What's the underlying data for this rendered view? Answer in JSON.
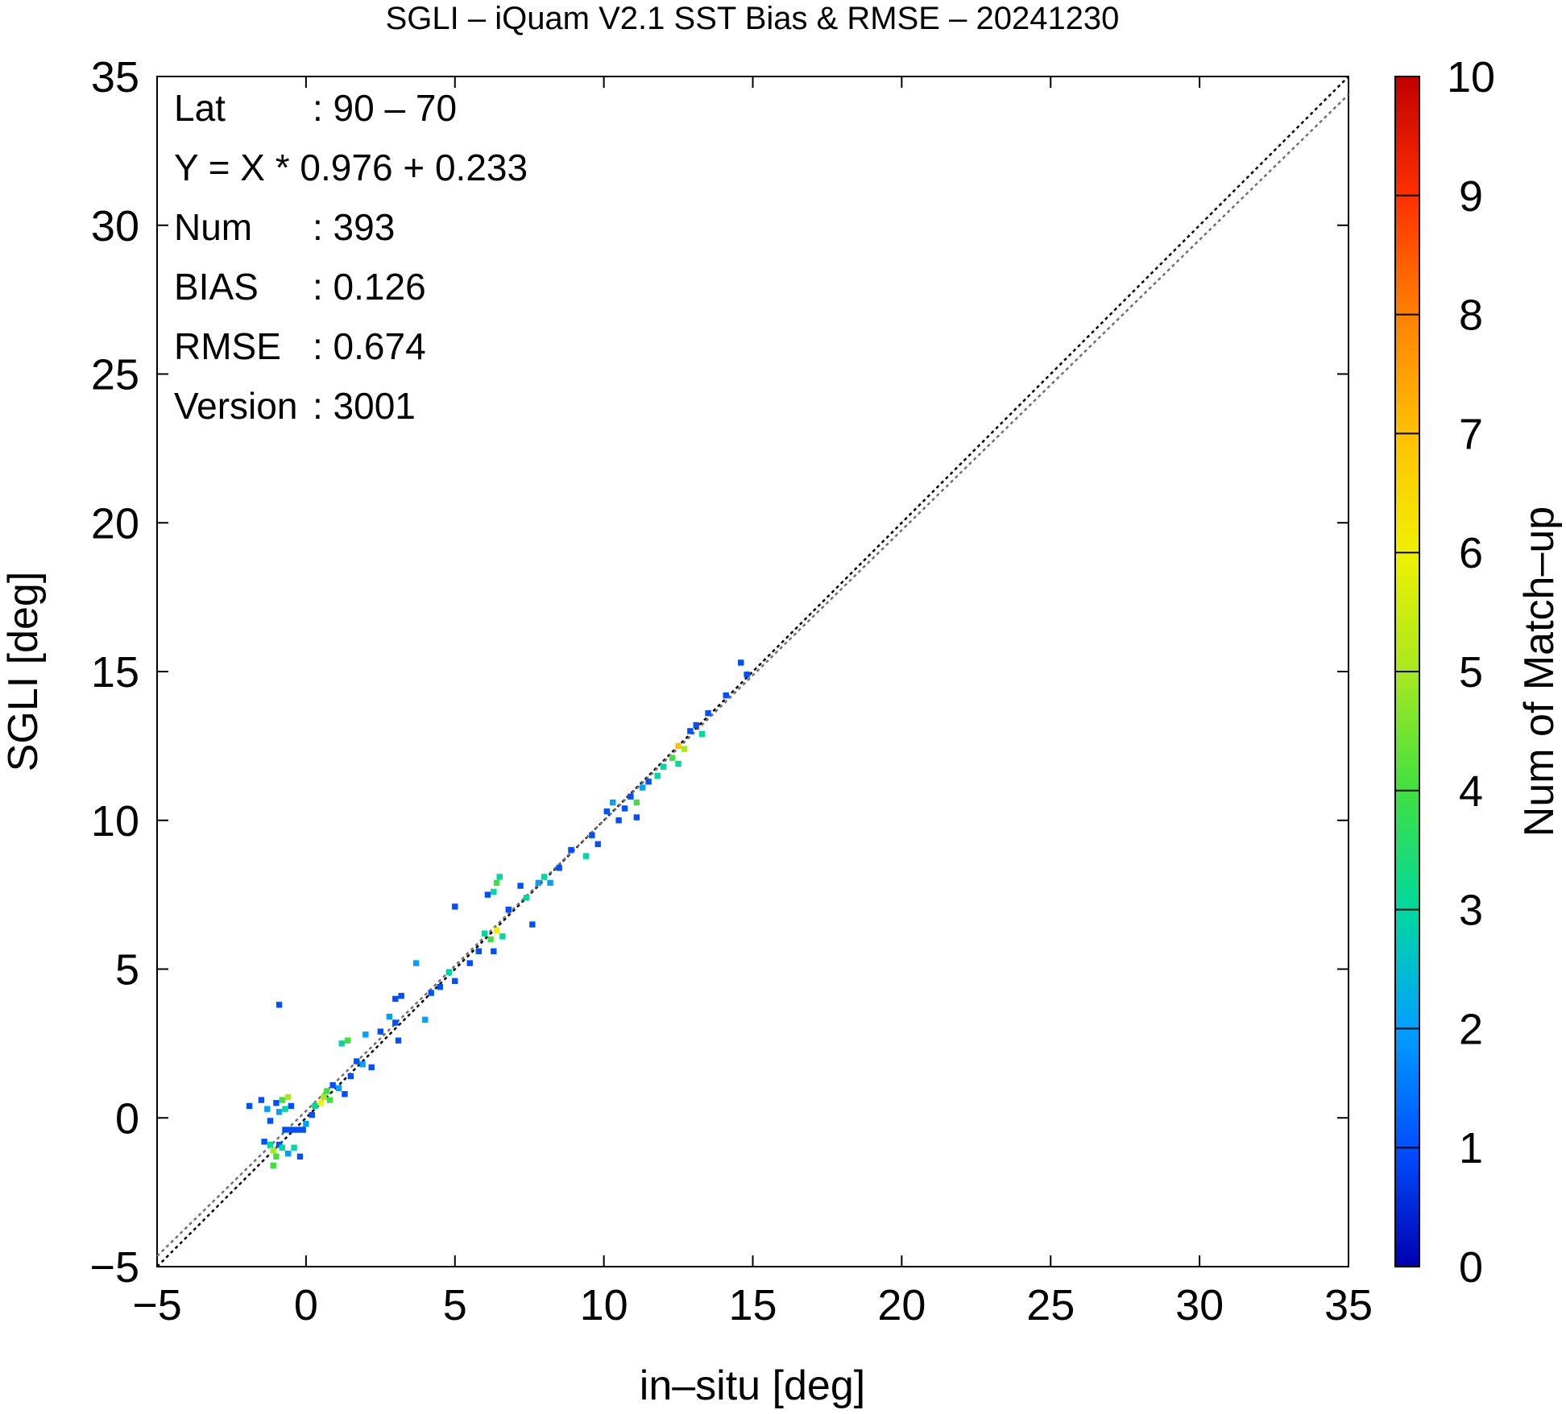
{
  "chart_data": {
    "type": "heatmap",
    "title": "SGLI – iQuam V2.1 SST Bias & RMSE  – 20241230",
    "xlabel": "in–situ [deg]",
    "ylabel": "SGLI [deg]",
    "xlim": [
      -5,
      35
    ],
    "ylim": [
      -5,
      35
    ],
    "x_ticks": [
      "−5",
      "0",
      "5",
      "10",
      "15",
      "20",
      "25",
      "30",
      "35"
    ],
    "y_ticks": [
      "−5",
      "0",
      "5",
      "10",
      "15",
      "20",
      "25",
      "30",
      "35"
    ],
    "grid": false,
    "colorbar": {
      "label": "Num of Match–up",
      "range": [
        0,
        10
      ],
      "ticks": [
        "0",
        "1",
        "2",
        "3",
        "4",
        "5",
        "6",
        "7",
        "8",
        "9",
        "10"
      ],
      "colors": [
        "#0000b0",
        "#0050ff",
        "#00a0ff",
        "#00d8a0",
        "#40e040",
        "#a8e820",
        "#f0f000",
        "#ffc000",
        "#ff8000",
        "#ff3000",
        "#c00000"
      ]
    },
    "stats": [
      {
        "key": "Lat",
        "value": ": 90 – 70"
      },
      {
        "key": "Y = X * 0.976 + 0.233",
        "value": ""
      },
      {
        "key": "Num",
        "value": ": 393"
      },
      {
        "key": "BIAS",
        "value": ": 0.126"
      },
      {
        "key": "RMSE",
        "value": ": 0.674"
      },
      {
        "key": "Version",
        "value": ": 3001"
      }
    ],
    "lines": [
      {
        "type": "identity",
        "slope": 1,
        "intercept": 0,
        "color": "#000000"
      },
      {
        "type": "regression",
        "slope": 0.976,
        "intercept": 0.233,
        "color": "#707070"
      }
    ],
    "points": [
      [
        -1.9,
        0.4,
        1
      ],
      [
        -1.5,
        0.6,
        1
      ],
      [
        -1.3,
        0.3,
        2
      ],
      [
        -1.2,
        -0.1,
        1
      ],
      [
        -1.0,
        0.5,
        1
      ],
      [
        -0.9,
        0.2,
        2
      ],
      [
        -0.8,
        0.6,
        4
      ],
      [
        -0.7,
        0.3,
        3
      ],
      [
        -0.6,
        0.7,
        5
      ],
      [
        -0.5,
        0.4,
        1
      ],
      [
        -1.4,
        -0.8,
        1
      ],
      [
        -1.2,
        -0.9,
        3
      ],
      [
        -1.1,
        -1.1,
        5
      ],
      [
        -1.0,
        -1.3,
        4
      ],
      [
        -1.1,
        -1.6,
        4
      ],
      [
        -0.9,
        -0.9,
        1
      ],
      [
        -0.8,
        -1.0,
        3
      ],
      [
        -0.6,
        -1.2,
        2
      ],
      [
        -0.4,
        -1.0,
        3
      ],
      [
        -0.2,
        -1.3,
        1
      ],
      [
        -0.7,
        -0.4,
        1
      ],
      [
        -0.5,
        -0.4,
        1
      ],
      [
        -0.3,
        -0.4,
        1
      ],
      [
        -0.1,
        -0.4,
        1
      ],
      [
        0.0,
        -0.2,
        2
      ],
      [
        0.2,
        0.1,
        1
      ],
      [
        0.3,
        0.4,
        3
      ],
      [
        0.5,
        0.5,
        6
      ],
      [
        0.6,
        0.7,
        5
      ],
      [
        0.7,
        0.9,
        4
      ],
      [
        0.8,
        0.6,
        4
      ],
      [
        0.9,
        1.1,
        1
      ],
      [
        1.1,
        1.0,
        2
      ],
      [
        1.3,
        0.8,
        1
      ],
      [
        1.5,
        1.4,
        1
      ],
      [
        1.7,
        1.9,
        1
      ],
      [
        1.2,
        2.5,
        3
      ],
      [
        1.4,
        2.6,
        4
      ],
      [
        1.9,
        1.8,
        2
      ],
      [
        2.2,
        1.7,
        1
      ],
      [
        2.0,
        2.8,
        2
      ],
      [
        2.5,
        2.9,
        1
      ],
      [
        2.8,
        3.4,
        2
      ],
      [
        3.0,
        4.0,
        1
      ],
      [
        3.2,
        4.1,
        1
      ],
      [
        3.0,
        3.2,
        1
      ],
      [
        3.1,
        2.6,
        1
      ],
      [
        3.7,
        5.2,
        2
      ],
      [
        4.0,
        3.3,
        2
      ],
      [
        4.2,
        4.2,
        1
      ],
      [
        4.5,
        4.4,
        1
      ],
      [
        4.8,
        4.9,
        3
      ],
      [
        5.0,
        4.6,
        1
      ],
      [
        5.5,
        5.2,
        1
      ],
      [
        5.0,
        7.1,
        1
      ],
      [
        5.8,
        5.6,
        1
      ],
      [
        6.0,
        6.2,
        3
      ],
      [
        6.1,
        7.5,
        1
      ],
      [
        6.3,
        7.6,
        3
      ],
      [
        6.4,
        7.9,
        4
      ],
      [
        6.5,
        8.1,
        3
      ],
      [
        6.2,
        6.0,
        4
      ],
      [
        6.4,
        6.3,
        6
      ],
      [
        6.6,
        6.1,
        3
      ],
      [
        6.3,
        5.6,
        1
      ],
      [
        6.8,
        7.0,
        1
      ],
      [
        7.2,
        7.8,
        1
      ],
      [
        7.4,
        7.4,
        3
      ],
      [
        7.6,
        6.5,
        1
      ],
      [
        7.8,
        7.9,
        2
      ],
      [
        8.0,
        8.1,
        3
      ],
      [
        8.2,
        7.9,
        2
      ],
      [
        8.5,
        8.4,
        1
      ],
      [
        8.9,
        9.0,
        1
      ],
      [
        9.4,
        8.8,
        3
      ],
      [
        9.6,
        9.5,
        1
      ],
      [
        9.8,
        9.2,
        1
      ],
      [
        10.1,
        10.3,
        1
      ],
      [
        10.3,
        10.6,
        2
      ],
      [
        10.5,
        10.0,
        1
      ],
      [
        10.7,
        10.4,
        1
      ],
      [
        10.9,
        10.8,
        1
      ],
      [
        11.1,
        10.6,
        4
      ],
      [
        11.3,
        11.1,
        2
      ],
      [
        11.1,
        10.1,
        1
      ],
      [
        11.5,
        11.3,
        1
      ],
      [
        11.8,
        11.5,
        3
      ],
      [
        12.0,
        11.8,
        3
      ],
      [
        12.3,
        12.1,
        4
      ],
      [
        12.5,
        12.5,
        7
      ],
      [
        12.7,
        12.4,
        5
      ],
      [
        12.5,
        11.9,
        3
      ],
      [
        12.9,
        13.0,
        1
      ],
      [
        13.1,
        13.2,
        1
      ],
      [
        13.3,
        12.9,
        3
      ],
      [
        13.5,
        13.6,
        1
      ],
      [
        14.1,
        14.2,
        1
      ],
      [
        14.6,
        15.3,
        1
      ],
      [
        14.8,
        14.9,
        1
      ],
      [
        -0.9,
        3.8,
        1
      ]
    ]
  }
}
